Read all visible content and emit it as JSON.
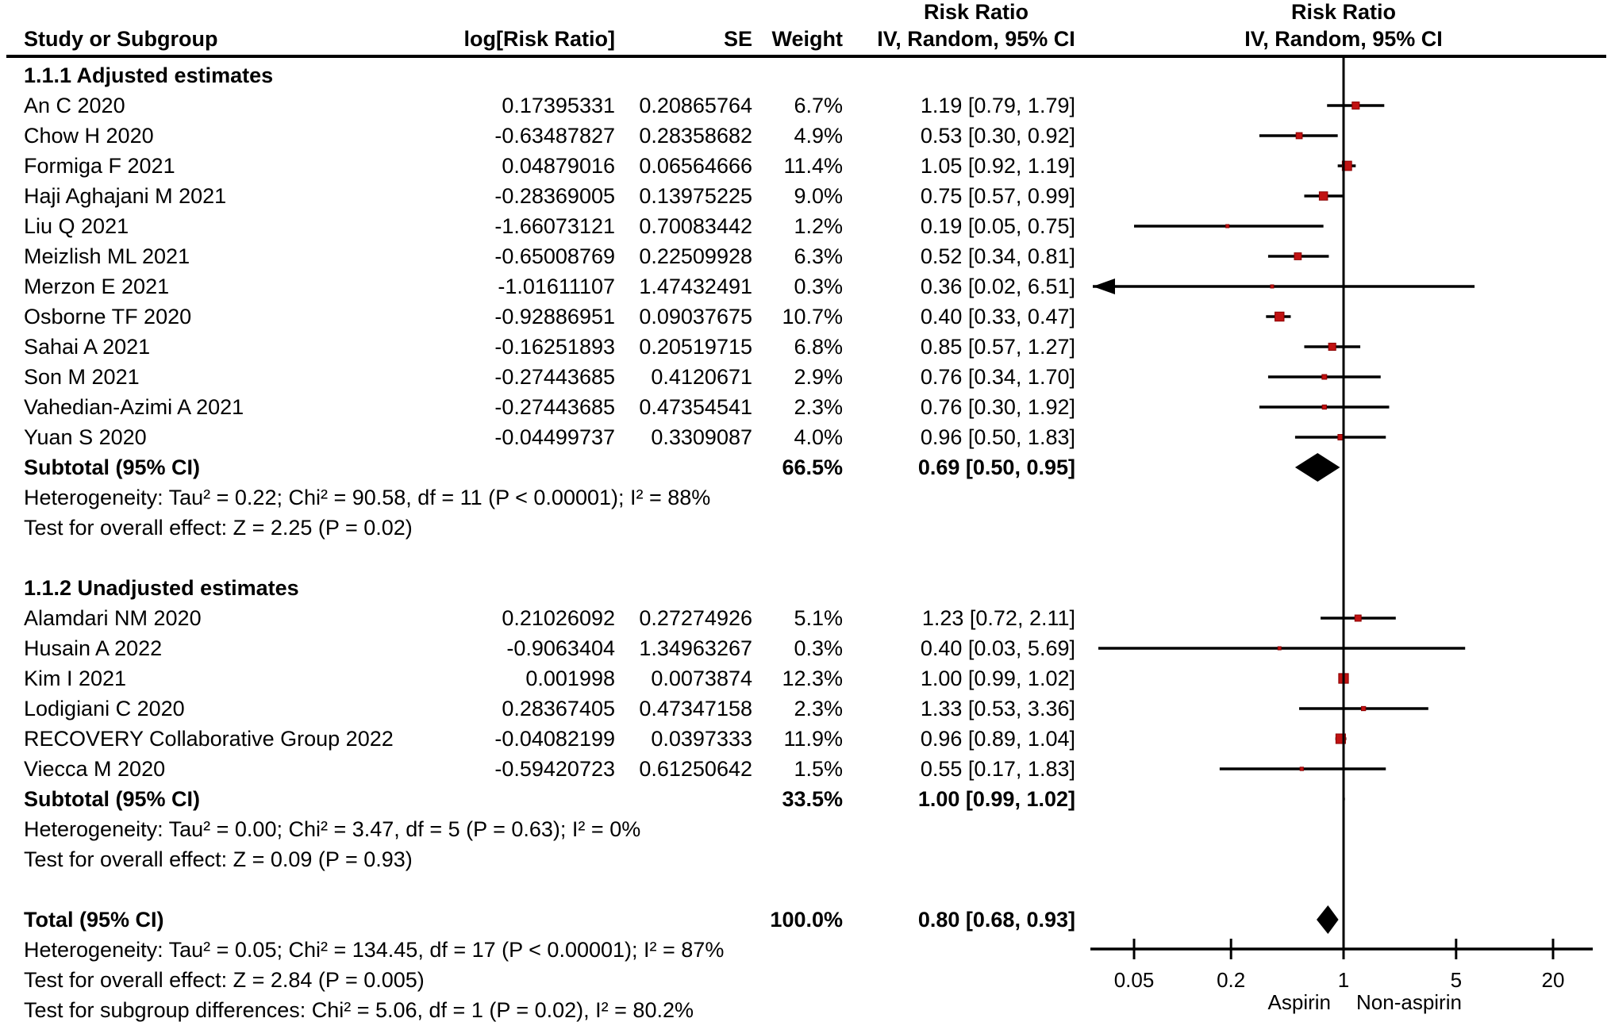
{
  "chart_data": {
    "type": "forest",
    "effect_measure": "Risk Ratio",
    "model": "IV, Random, 95% CI",
    "headers": {
      "study": "Study or Subgroup",
      "log_rr": "log[Risk Ratio]",
      "se": "SE",
      "weight": "Weight",
      "ci_top": "Risk Ratio",
      "ci_bottom": "IV, Random, 95% CI",
      "plot_top": "Risk Ratio",
      "plot_bottom": "IV, Random, 95% CI"
    },
    "groups": [
      {
        "label": "1.1.1 Adjusted estimates",
        "studies": [
          {
            "name": "An C 2020",
            "log_rr": "0.17395331",
            "se": "0.20865764",
            "weight": "6.7%",
            "ci": "1.19 [0.79, 1.79]",
            "rr": 1.19,
            "lo": 0.79,
            "hi": 1.79,
            "w": 6.7
          },
          {
            "name": "Chow H 2020",
            "log_rr": "-0.63487827",
            "se": "0.28358682",
            "weight": "4.9%",
            "ci": "0.53 [0.30, 0.92]",
            "rr": 0.53,
            "lo": 0.3,
            "hi": 0.92,
            "w": 4.9
          },
          {
            "name": "Formiga F 2021",
            "log_rr": "0.04879016",
            "se": "0.06564666",
            "weight": "11.4%",
            "ci": "1.05 [0.92, 1.19]",
            "rr": 1.05,
            "lo": 0.92,
            "hi": 1.19,
            "w": 11.4
          },
          {
            "name": "Haji Aghajani M 2021",
            "log_rr": "-0.28369005",
            "se": "0.13975225",
            "weight": "9.0%",
            "ci": "0.75 [0.57, 0.99]",
            "rr": 0.75,
            "lo": 0.57,
            "hi": 0.99,
            "w": 9.0
          },
          {
            "name": "Liu Q 2021",
            "log_rr": "-1.66073121",
            "se": "0.70083442",
            "weight": "1.2%",
            "ci": "0.19 [0.05, 0.75]",
            "rr": 0.19,
            "lo": 0.05,
            "hi": 0.75,
            "w": 1.2
          },
          {
            "name": "Meizlish ML 2021",
            "log_rr": "-0.65008769",
            "se": "0.22509928",
            "weight": "6.3%",
            "ci": "0.52 [0.34, 0.81]",
            "rr": 0.52,
            "lo": 0.34,
            "hi": 0.81,
            "w": 6.3
          },
          {
            "name": "Merzon E 2021",
            "log_rr": "-1.01611107",
            "se": "1.47432491",
            "weight": "0.3%",
            "ci": "0.36 [0.02, 6.51]",
            "rr": 0.36,
            "lo": 0.02,
            "hi": 6.51,
            "w": 0.3
          },
          {
            "name": "Osborne TF 2020",
            "log_rr": "-0.92886951",
            "se": "0.09037675",
            "weight": "10.7%",
            "ci": "0.40 [0.33, 0.47]",
            "rr": 0.4,
            "lo": 0.33,
            "hi": 0.47,
            "w": 10.7
          },
          {
            "name": "Sahai A 2021",
            "log_rr": "-0.16251893",
            "se": "0.20519715",
            "weight": "6.8%",
            "ci": "0.85 [0.57, 1.27]",
            "rr": 0.85,
            "lo": 0.57,
            "hi": 1.27,
            "w": 6.8
          },
          {
            "name": "Son M 2021",
            "log_rr": "-0.27443685",
            "se": "0.4120671",
            "weight": "2.9%",
            "ci": "0.76 [0.34, 1.70]",
            "rr": 0.76,
            "lo": 0.34,
            "hi": 1.7,
            "w": 2.9
          },
          {
            "name": "Vahedian-Azimi A 2021",
            "log_rr": "-0.27443685",
            "se": "0.47354541",
            "weight": "2.3%",
            "ci": "0.76 [0.30, 1.92]",
            "rr": 0.76,
            "lo": 0.3,
            "hi": 1.92,
            "w": 2.3
          },
          {
            "name": "Yuan S 2020",
            "log_rr": "-0.04499737",
            "se": "0.3309087",
            "weight": "4.0%",
            "ci": "0.96 [0.50, 1.83]",
            "rr": 0.96,
            "lo": 0.5,
            "hi": 1.83,
            "w": 4.0
          }
        ],
        "subtotal": {
          "label": "Subtotal (95% CI)",
          "weight": "66.5%",
          "ci": "0.69 [0.50, 0.95]",
          "rr": 0.69,
          "lo": 0.5,
          "hi": 0.95
        },
        "heterogeneity": "Heterogeneity: Tau² = 0.22; Chi² = 90.58, df = 11 (P < 0.00001); I² = 88%",
        "overall_effect": "Test for overall effect: Z = 2.25 (P = 0.02)"
      },
      {
        "label": "1.1.2 Unadjusted estimates",
        "studies": [
          {
            "name": "Alamdari NM 2020",
            "log_rr": "0.21026092",
            "se": "0.27274926",
            "weight": "5.1%",
            "ci": "1.23 [0.72, 2.11]",
            "rr": 1.23,
            "lo": 0.72,
            "hi": 2.11,
            "w": 5.1
          },
          {
            "name": "Husain A 2022",
            "log_rr": "-0.9063404",
            "se": "1.34963267",
            "weight": "0.3%",
            "ci": "0.40 [0.03, 5.69]",
            "rr": 0.4,
            "lo": 0.03,
            "hi": 5.69,
            "w": 0.3
          },
          {
            "name": "Kim I 2021",
            "log_rr": "0.001998",
            "se": "0.0073874",
            "weight": "12.3%",
            "ci": "1.00 [0.99, 1.02]",
            "rr": 1.0,
            "lo": 0.99,
            "hi": 1.02,
            "w": 12.3
          },
          {
            "name": "Lodigiani C 2020",
            "log_rr": "0.28367405",
            "se": "0.47347158",
            "weight": "2.3%",
            "ci": "1.33 [0.53, 3.36]",
            "rr": 1.33,
            "lo": 0.53,
            "hi": 3.36,
            "w": 2.3
          },
          {
            "name": "RECOVERY Collaborative Group 2022",
            "log_rr": "-0.04082199",
            "se": "0.0397333",
            "weight": "11.9%",
            "ci": "0.96 [0.89, 1.04]",
            "rr": 0.96,
            "lo": 0.89,
            "hi": 1.04,
            "w": 11.9
          },
          {
            "name": "Viecca M 2020",
            "log_rr": "-0.59420723",
            "se": "0.61250642",
            "weight": "1.5%",
            "ci": "0.55 [0.17, 1.83]",
            "rr": 0.55,
            "lo": 0.17,
            "hi": 1.83,
            "w": 1.5
          }
        ],
        "subtotal": {
          "label": "Subtotal (95% CI)",
          "weight": "33.5%",
          "ci": "1.00 [0.99, 1.02]",
          "rr": 1.0,
          "lo": 0.99,
          "hi": 1.02
        },
        "heterogeneity": "Heterogeneity: Tau² = 0.00; Chi² = 3.47, df = 5 (P = 0.63); I² = 0%",
        "overall_effect": "Test for overall effect: Z = 0.09 (P = 0.93)"
      }
    ],
    "total": {
      "label": "Total (95% CI)",
      "weight": "100.0%",
      "ci": "0.80 [0.68, 0.93]",
      "rr": 0.8,
      "lo": 0.68,
      "hi": 0.93
    },
    "total_heterogeneity": "Heterogeneity: Tau² = 0.05; Chi² = 134.45, df = 17 (P < 0.00001); I² = 87%",
    "total_overall_effect": "Test for overall effect: Z = 2.84 (P = 0.005)",
    "subgroup_difference": "Test for subgroup differences: Chi² = 5.06, df = 1 (P = 0.02), I² = 80.2%",
    "axis": {
      "scale": "log",
      "ticks": [
        {
          "label": "0.05",
          "value": 0.05
        },
        {
          "label": "0.2",
          "value": 0.2
        },
        {
          "label": "1",
          "value": 1
        },
        {
          "label": "5",
          "value": 5
        },
        {
          "label": "20",
          "value": 20
        }
      ],
      "left_label": "Aspirin",
      "right_label": "Non-aspirin"
    },
    "colors": {
      "marker": "#C11212",
      "marker_edge": "#8B0000",
      "line": "#000000",
      "diamond": "#000000"
    }
  }
}
